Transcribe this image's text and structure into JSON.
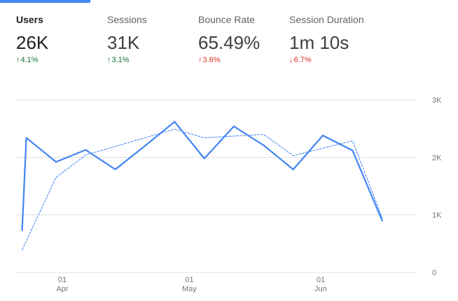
{
  "colors": {
    "accent": "#4285f4",
    "positive": "#137333",
    "negative": "#d93025",
    "grid": "#e0e0e0",
    "muted": "#757575"
  },
  "metrics": [
    {
      "label": "Users",
      "value": "26K",
      "change": "4.1%",
      "direction": "up",
      "sentiment": "positive",
      "active": true
    },
    {
      "label": "Sessions",
      "value": "31K",
      "change": "3.1%",
      "direction": "up",
      "sentiment": "positive",
      "active": false
    },
    {
      "label": "Bounce Rate",
      "value": "65.49%",
      "change": "3.6%",
      "direction": "up",
      "sentiment": "negative",
      "active": false
    },
    {
      "label": "Session Duration",
      "value": "1m 10s",
      "change": "6.7%",
      "direction": "down",
      "sentiment": "negative",
      "active": false
    }
  ],
  "chart_data": {
    "type": "line",
    "title": "",
    "xlabel": "",
    "ylabel": "",
    "ylim": [
      0,
      3000
    ],
    "y_ticks": [
      {
        "value": 0,
        "label": "0"
      },
      {
        "value": 1000,
        "label": "1K"
      },
      {
        "value": 2000,
        "label": "2K"
      },
      {
        "value": 3000,
        "label": "3K"
      }
    ],
    "x_ticks": [
      {
        "date": "2020-04-01",
        "day": "01",
        "month": "Apr"
      },
      {
        "date": "2020-05-01",
        "day": "01",
        "month": "May"
      },
      {
        "date": "2020-06-01",
        "day": "01",
        "month": "Jun"
      }
    ],
    "x": [
      "2020-03-23",
      "2020-03-24",
      "2020-03-31",
      "2020-04-07",
      "2020-04-14",
      "2020-04-21",
      "2020-04-28",
      "2020-05-05",
      "2020-05-12",
      "2020-05-19",
      "2020-05-26",
      "2020-06-02",
      "2020-06-09",
      "2020-06-16",
      "2020-06-23"
    ],
    "series": [
      {
        "style": "solid",
        "values": [
          730,
          2340,
          1920,
          2130,
          1790,
          2200,
          2620,
          1980,
          2540,
          2210,
          1790,
          2380,
          2120,
          900,
          null
        ]
      },
      {
        "style": "dashed",
        "values": [
          390,
          null,
          1650,
          2040,
          null,
          null,
          2490,
          2340,
          null,
          2400,
          2030,
          2160,
          2290,
          950,
          null
        ]
      }
    ],
    "grid": true,
    "legend": "none"
  }
}
